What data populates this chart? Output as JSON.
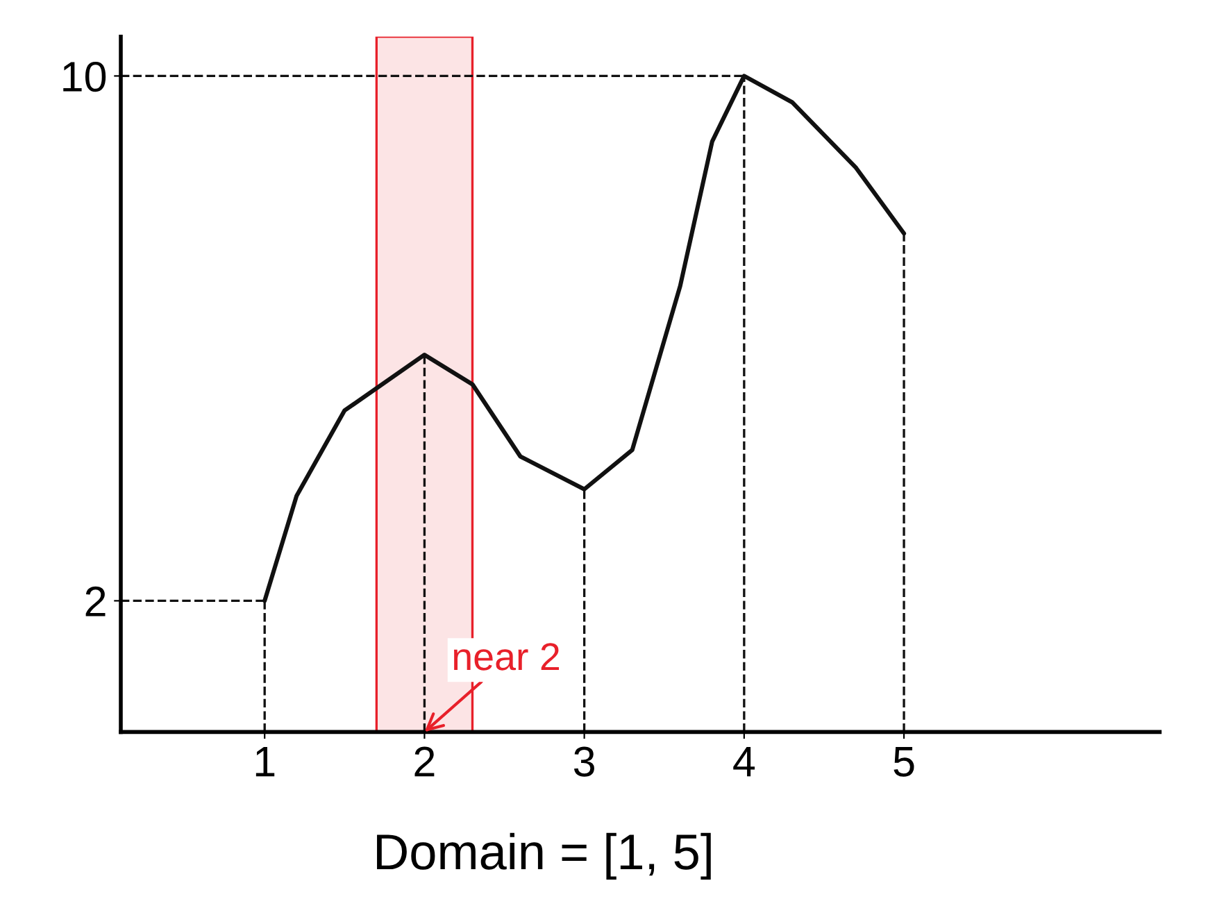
{
  "chart_data": {
    "type": "line",
    "x": [
      1,
      1.2,
      1.5,
      2,
      2.3,
      2.6,
      3,
      3.3,
      3.6,
      3.8,
      4,
      4.3,
      4.7,
      5
    ],
    "values": [
      2,
      3.6,
      4.9,
      5.75,
      5.3,
      4.2,
      3.7,
      4.3,
      6.8,
      9,
      10,
      9.6,
      8.6,
      7.6
    ],
    "color": "#111111",
    "xlim": [
      0.1,
      6.6
    ],
    "ylim": [
      0,
      10.6
    ],
    "xticks": [
      1,
      2,
      3,
      4,
      5
    ],
    "yticks": [
      2,
      10
    ],
    "grid": false,
    "marker": "none",
    "line_style": "solid",
    "ref_lines": [
      {
        "axis": "x",
        "value": 1,
        "line_style": "dashed"
      },
      {
        "axis": "x",
        "value": 2,
        "line_style": "dashed"
      },
      {
        "axis": "x",
        "value": 3,
        "line_style": "dashed"
      },
      {
        "axis": "x",
        "value": 4,
        "line_style": "dashed"
      },
      {
        "axis": "x",
        "value": 5,
        "line_style": "dashed"
      },
      {
        "axis": "y",
        "value": 2,
        "line_style": "dashed"
      },
      {
        "axis": "y",
        "value": 10,
        "line_style": "dashed"
      }
    ],
    "bands": [
      {
        "axis": "x",
        "from": 1.7,
        "to": 2.3,
        "color": "#e8202a"
      }
    ],
    "annotations": [
      {
        "text": "near 2",
        "x": 2,
        "y": 0
      },
      "Domain = [1, 5]"
    ]
  }
}
